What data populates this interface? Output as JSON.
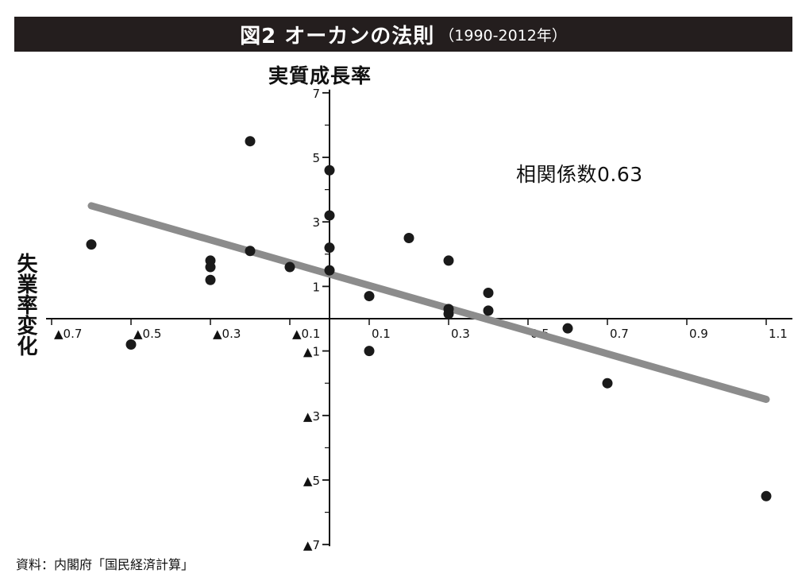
{
  "header": {
    "title": "図2 オーカンの法則",
    "subtitle": "（1990-2012年）"
  },
  "source": "資料：内閣府「国民経済計算」",
  "chart_data": {
    "type": "scatter",
    "title": "図2 オーカンの法則",
    "subtitle": "（1990-2012年）",
    "xlabel": "失業率変化",
    "ylabel": "実質成長率",
    "annotation": "相関係数0.63",
    "xlim": [
      -0.7,
      1.1
    ],
    "ylim": [
      -7,
      7
    ],
    "x_ticks": [
      -0.7,
      -0.5,
      -0.3,
      -0.1,
      0.1,
      0.3,
      0.5,
      0.7,
      0.9,
      1.1
    ],
    "x_tick_labels": [
      "▲0.7",
      "▲0.5",
      "▲0.3",
      "▲0.1",
      "0.1",
      "0.3",
      "0.5",
      "0.7",
      "0.9",
      "1.1"
    ],
    "y_ticks": [
      7,
      5,
      3,
      1,
      -1,
      -3,
      -5,
      -7
    ],
    "y_tick_labels": [
      "7",
      "5",
      "3",
      "1",
      "▲1",
      "▲3",
      "▲5",
      "▲7"
    ],
    "grid": false,
    "points": [
      {
        "x": -0.6,
        "y": 2.3
      },
      {
        "x": -0.5,
        "y": -0.8
      },
      {
        "x": -0.3,
        "y": 1.8
      },
      {
        "x": -0.3,
        "y": 1.6
      },
      {
        "x": -0.3,
        "y": 1.2
      },
      {
        "x": -0.2,
        "y": 5.5
      },
      {
        "x": -0.2,
        "y": 2.1
      },
      {
        "x": -0.1,
        "y": 1.6
      },
      {
        "x": 0.0,
        "y": 4.6
      },
      {
        "x": 0.0,
        "y": 3.2
      },
      {
        "x": 0.0,
        "y": 2.2
      },
      {
        "x": 0.0,
        "y": 1.5
      },
      {
        "x": 0.1,
        "y": 0.7
      },
      {
        "x": 0.1,
        "y": -1.0
      },
      {
        "x": 0.2,
        "y": 2.5
      },
      {
        "x": 0.3,
        "y": 1.8
      },
      {
        "x": 0.3,
        "y": 0.3
      },
      {
        "x": 0.3,
        "y": 0.15
      },
      {
        "x": 0.4,
        "y": 0.8
      },
      {
        "x": 0.4,
        "y": 0.25
      },
      {
        "x": 0.6,
        "y": -0.3
      },
      {
        "x": 0.7,
        "y": -2.0
      },
      {
        "x": 1.1,
        "y": -5.5
      }
    ],
    "trend_line": {
      "x": [
        -0.6,
        1.1
      ],
      "y": [
        3.5,
        -2.5
      ],
      "color": "#8c8c8c"
    },
    "colors": {
      "points": "#1a1a1a",
      "axes": "#111111",
      "title_bar": "#241e1e"
    }
  }
}
